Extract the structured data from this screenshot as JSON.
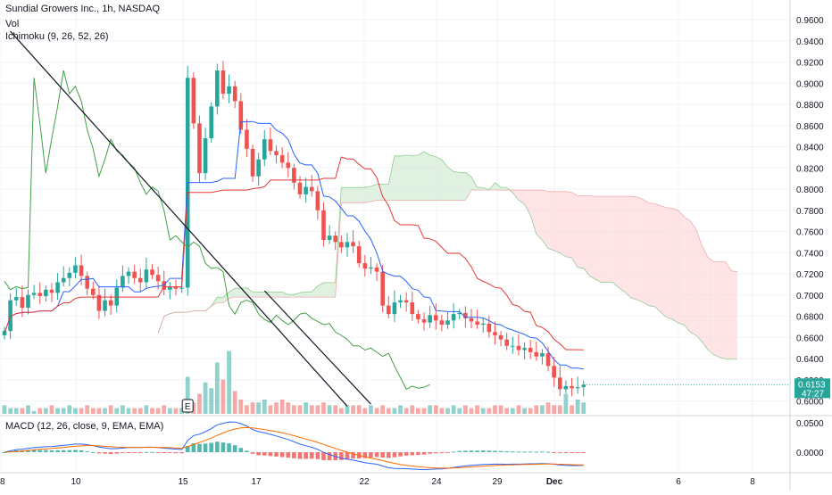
{
  "header": {
    "title": "Sundial Growers Inc., 1h, NASDAQ",
    "vol_label": "Vol",
    "ichimoku_label": "Ichimoku (9, 26, 52, 26)",
    "macd_label": "MACD (12, 26, close, 9, EMA, EMA)"
  },
  "price_badge": {
    "price": "0.6153",
    "countdown": "47:27",
    "color": "#26a69a"
  },
  "event_marker": "E",
  "colors": {
    "up": "#26a69a",
    "down": "#ef5350",
    "conversion": "#2962ff",
    "base": "#e53935",
    "lagging": "#43a047",
    "cloud_bull": "#c8e6c9",
    "cloud_bear": "#ffcdd2",
    "macd": "#2962ff",
    "signal": "#ff6d00"
  },
  "chart_data": [
    {
      "type": "candlestick",
      "panel": "price",
      "title": "Sundial Growers Inc., 1h, NASDAQ",
      "y_ticks": [
        "0.9600",
        "0.9400",
        "0.9200",
        "0.9000",
        "0.8800",
        "0.8600",
        "0.8400",
        "0.8200",
        "0.8000",
        "0.7800",
        "0.7600",
        "0.7400",
        "0.7200",
        "0.7000",
        "0.6800",
        "0.6600",
        "0.6400",
        "0.6200",
        "0.6000"
      ],
      "x_ticks": [
        "8",
        "10",
        "15",
        "17",
        "22",
        "24",
        "29",
        "Dec",
        "6",
        "8"
      ],
      "ylim": [
        0.595,
        0.97
      ],
      "last_price": 0.6153,
      "closes": [
        0.666,
        0.695,
        0.698,
        0.688,
        0.7,
        0.702,
        0.699,
        0.705,
        0.702,
        0.712,
        0.716,
        0.721,
        0.728,
        0.718,
        0.706,
        0.7,
        0.685,
        0.695,
        0.69,
        0.707,
        0.718,
        0.722,
        0.716,
        0.712,
        0.724,
        0.719,
        0.713,
        0.705,
        0.708,
        0.706,
        0.707,
        0.905,
        0.862,
        0.815,
        0.848,
        0.878,
        0.912,
        0.89,
        0.897,
        0.883,
        0.856,
        0.838,
        0.812,
        0.828,
        0.847,
        0.836,
        0.832,
        0.825,
        0.82,
        0.806,
        0.795,
        0.802,
        0.798,
        0.78,
        0.752,
        0.756,
        0.75,
        0.745,
        0.75,
        0.746,
        0.73,
        0.725,
        0.726,
        0.722,
        0.69,
        0.682,
        0.693,
        0.695,
        0.693,
        0.682,
        0.677,
        0.674,
        0.681,
        0.676,
        0.672,
        0.676,
        0.682,
        0.683,
        0.678,
        0.675,
        0.672,
        0.673,
        0.665,
        0.662,
        0.658,
        0.652,
        0.652,
        0.648,
        0.65,
        0.646,
        0.642,
        0.645,
        0.633,
        0.622,
        0.611,
        0.614,
        0.612,
        0.613,
        0.6153
      ],
      "ichimoku": {
        "conversion_line": "blue",
        "base_line": "red",
        "lagging_span": "green",
        "cloud": "green/red shading"
      },
      "trendlines": [
        {
          "from": [
            0.949,
            1
          ],
          "to": [
            0.595,
            58
          ]
        },
        {
          "from": [
            0.704,
            44
          ],
          "to": [
            0.597,
            62
          ]
        }
      ]
    },
    {
      "type": "bar",
      "panel": "volume",
      "series": [
        {
          "name": "Vol",
          "values": [
            3,
            2,
            2,
            2,
            3,
            1,
            2,
            2,
            3,
            2,
            2,
            3,
            2,
            2,
            3,
            2,
            2,
            2,
            3,
            2,
            3,
            2,
            2,
            2,
            3,
            2,
            2,
            3,
            2,
            2,
            2,
            13,
            4,
            7,
            11,
            9,
            18,
            12,
            22,
            8,
            5,
            3,
            4,
            4,
            5,
            3,
            4,
            5,
            4,
            3,
            3,
            4,
            3,
            3,
            4,
            3,
            3,
            2,
            3,
            3,
            3,
            2,
            3,
            2,
            3,
            2,
            2,
            3,
            2,
            3,
            2,
            2,
            3,
            3,
            2,
            2,
            3,
            2,
            3,
            2,
            3,
            2,
            2,
            3,
            3,
            2,
            2,
            3,
            2,
            2,
            3,
            3,
            4,
            3,
            3,
            7,
            3,
            5,
            4
          ]
        }
      ]
    },
    {
      "type": "line",
      "panel": "macd",
      "title": "MACD (12, 26, close, 9, EMA, EMA)",
      "y_ticks": [
        "0.0500",
        "0.0000"
      ],
      "ylim": [
        -0.015,
        0.062
      ],
      "series": [
        {
          "name": "MACD"
        },
        {
          "name": "Signal"
        }
      ]
    }
  ]
}
